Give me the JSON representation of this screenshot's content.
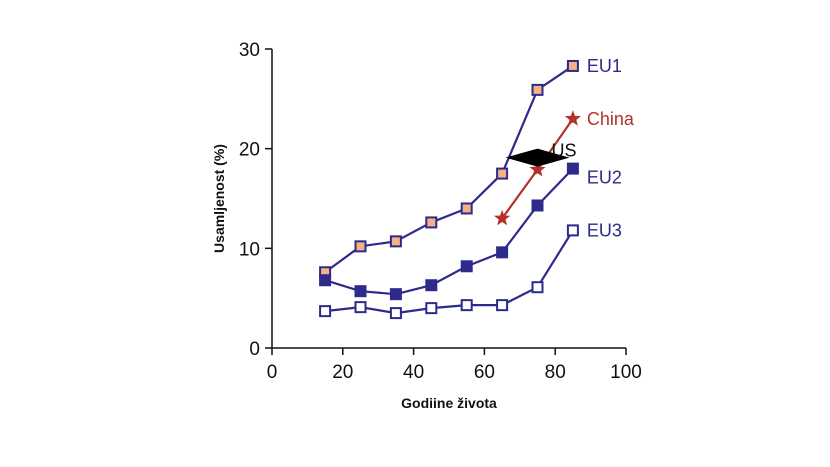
{
  "chart_data": {
    "type": "line",
    "title": "",
    "xlabel": "Godiine života",
    "ylabel": "Usamljenost (%)",
    "xlim": [
      0,
      100
    ],
    "ylim": [
      0,
      30
    ],
    "xticks": [
      0,
      20,
      40,
      60,
      80,
      100
    ],
    "yticks": [
      0,
      10,
      20,
      30
    ],
    "grid": false,
    "legend": "labels at line ends (right)",
    "series": [
      {
        "name": "EU1",
        "color": "#2e2a8c",
        "marker": "square-filled",
        "marker_fill": "#f4b183",
        "x": [
          15,
          25,
          35,
          45,
          55,
          65,
          75,
          85
        ],
        "y": [
          7.6,
          10.2,
          10.7,
          12.6,
          14.0,
          17.5,
          25.9,
          28.3
        ]
      },
      {
        "name": "EU2",
        "color": "#2e2a8c",
        "marker": "square-filled",
        "marker_fill": "#2e2a8c",
        "x": [
          15,
          25,
          35,
          45,
          55,
          65,
          75,
          85
        ],
        "y": [
          6.8,
          5.7,
          5.4,
          6.3,
          8.2,
          9.6,
          14.3,
          18.0
        ]
      },
      {
        "name": "EU3",
        "color": "#2e2a8c",
        "marker": "square-open",
        "marker_fill": "#ffffff",
        "x": [
          15,
          25,
          35,
          45,
          55,
          65,
          75,
          85
        ],
        "y": [
          3.7,
          4.1,
          3.5,
          4.0,
          4.3,
          4.3,
          6.1,
          11.8
        ]
      },
      {
        "name": "China",
        "color": "#b5302a",
        "marker": "star",
        "marker_fill": "#b5302a",
        "x": [
          65,
          75,
          85
        ],
        "y": [
          13.0,
          17.9,
          23.0
        ]
      },
      {
        "name": "US",
        "color": "#000000",
        "marker": "diamond",
        "marker_fill": "#000000",
        "x": [
          75
        ],
        "y": [
          19.1
        ]
      }
    ]
  }
}
